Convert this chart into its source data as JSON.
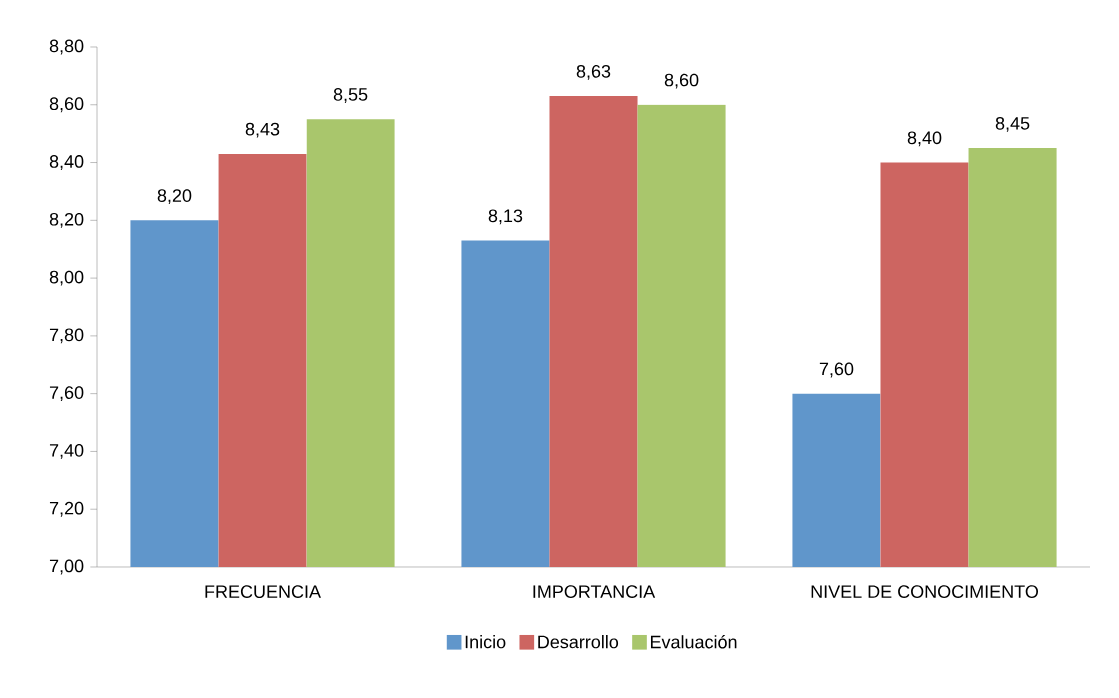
{
  "chart_data": {
    "type": "bar",
    "categories": [
      "FRECUENCIA",
      "IMPORTANCIA",
      "NIVEL DE CONOCIMIENTO"
    ],
    "series": [
      {
        "name": "Inicio",
        "color": "#6096cb",
        "values": [
          8.2,
          8.13,
          7.6
        ],
        "value_labels": [
          "8,20",
          "8,13",
          "7,60"
        ]
      },
      {
        "name": "Desarrollo",
        "color": "#cd6561",
        "values": [
          8.43,
          8.63,
          8.4
        ],
        "value_labels": [
          "8,43",
          "8,63",
          "8,40"
        ]
      },
      {
        "name": "Evaluación",
        "color": "#a9c66c",
        "values": [
          8.55,
          8.6,
          8.45
        ],
        "value_labels": [
          "8,55",
          "8,60",
          "8,45"
        ]
      }
    ],
    "ylim": [
      7.0,
      8.8
    ],
    "yticks": [
      {
        "value": 7.0,
        "label": "7,00"
      },
      {
        "value": 7.2,
        "label": "7,20"
      },
      {
        "value": 7.4,
        "label": "7,40"
      },
      {
        "value": 7.6,
        "label": "7,60"
      },
      {
        "value": 7.8,
        "label": "7,80"
      },
      {
        "value": 8.0,
        "label": "8,00"
      },
      {
        "value": 8.2,
        "label": "8,20"
      },
      {
        "value": 8.4,
        "label": "8,40"
      },
      {
        "value": 8.6,
        "label": "8,60"
      },
      {
        "value": 8.8,
        "label": "8,80"
      }
    ],
    "legend": "bottom"
  }
}
